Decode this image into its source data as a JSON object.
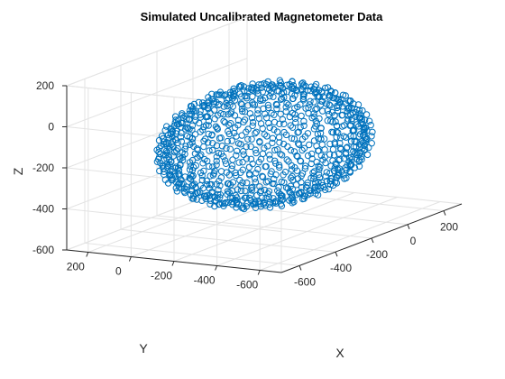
{
  "chart_data": {
    "type": "scatter",
    "title": "Simulated Uncalibrated Magnetometer Data",
    "xlabel": "X",
    "ylabel": "Y",
    "zlabel": "Z",
    "xlim": [
      -700,
      300
    ],
    "ylim": [
      -700,
      300
    ],
    "zlim": [
      -600,
      200
    ],
    "xticks": [
      -600,
      -400,
      -200,
      0,
      200
    ],
    "yticks": [
      -600,
      -400,
      -200,
      0,
      200
    ],
    "zticks": [
      -600,
      -400,
      -200,
      0,
      200
    ],
    "grid": true,
    "marker": "open-circle",
    "color": "#0072BD",
    "ellipsoid_model": {
      "center": [
        -200,
        -200,
        -200
      ],
      "semi_axes": [
        370,
        370,
        270
      ],
      "num_points": 1000
    }
  }
}
